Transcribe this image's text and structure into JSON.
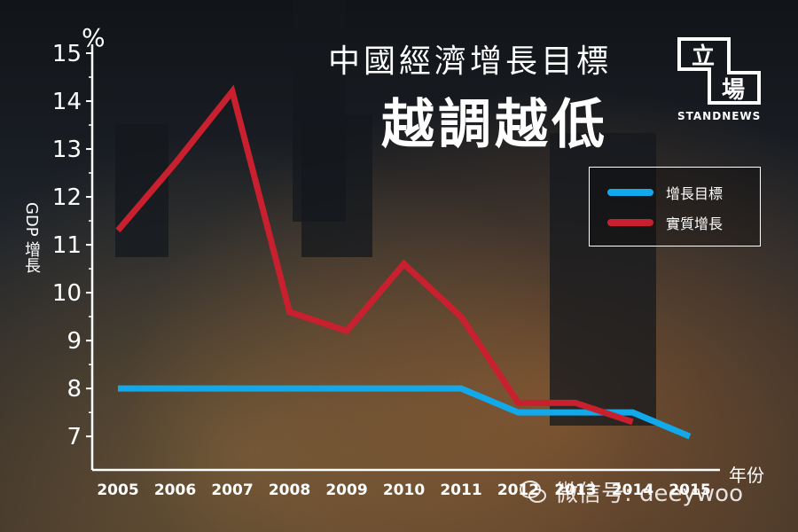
{
  "header": {
    "title_line1": "中國經濟增長目標",
    "title_line2": "越調越低",
    "brand_char1": "立",
    "brand_char2": "場",
    "brand_name": "STANDNEWS"
  },
  "watermark": {
    "text": "微信号: deeywoo"
  },
  "colors": {
    "target": "#12a9ea",
    "actual": "#c8202f",
    "text": "#ffffff"
  },
  "chart_data": {
    "type": "line",
    "unit_label": "%",
    "ylabel": "GDP 增長",
    "xlabel": "年份",
    "ylim": [
      6.3,
      15
    ],
    "yticks": [
      7,
      8,
      9,
      10,
      11,
      12,
      13,
      14,
      15
    ],
    "categories": [
      "2005",
      "2006",
      "2007",
      "2008",
      "2009",
      "2010",
      "2011",
      "2012",
      "2013",
      "2014",
      "2015"
    ],
    "series": [
      {
        "name": "增長目標",
        "color": "#12a9ea",
        "values": [
          8,
          8,
          8,
          8,
          8,
          8,
          8,
          7.5,
          7.5,
          7.5,
          7
        ]
      },
      {
        "name": "實質增長",
        "color": "#c8202f",
        "values": [
          11.3,
          12.7,
          14.2,
          9.6,
          9.2,
          10.6,
          9.5,
          7.7,
          7.7,
          7.3,
          null
        ]
      }
    ],
    "legend_position": "top-right",
    "grid": false
  }
}
